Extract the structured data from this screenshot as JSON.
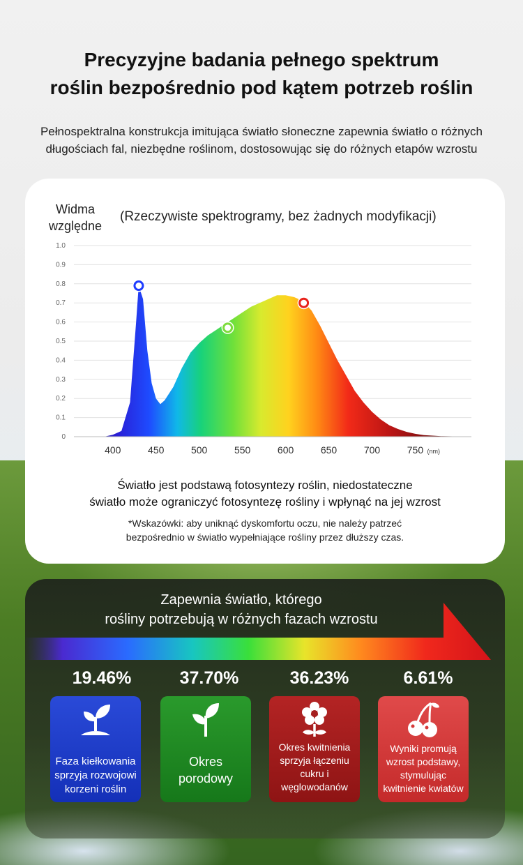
{
  "header": {
    "title_line1": "Precyzyjne badania pełnego spektrum",
    "title_line2": "roślin bezpośrednio pod kątem potrzeb roślin",
    "subtitle_line1": "Pełnospektralna konstrukcja imitująca światło słoneczne zapewnia światło o różnych",
    "subtitle_line2": "długościach fal, niezbędne roślinom, dostosowując się do różnych etapów wzrostu"
  },
  "spectrum_card": {
    "ylabel_line1": "Widma",
    "ylabel_line2": "względne",
    "note": "(Rzeczywiste spektrogramy, bez żadnych modyfikacji)",
    "body_line1": "Światło jest podstawą fotosyntezy roślin, niedostateczne",
    "body_line2": "światło może ograniczyć fotosyntezę rośliny i wpłynąć na jej wzrost",
    "tip_line1": "*Wskazówki: aby uniknąć dyskomfortu oczu, nie należy patrzeć",
    "tip_line2": "bezpośrednio w światło wypełniające rośliny przez dłuższy czas."
  },
  "chart_data": {
    "type": "area",
    "title": "",
    "xlabel": "",
    "ylabel": "Widma względne",
    "x_unit": "(nm)",
    "xlim": [
      355,
      815
    ],
    "ylim": [
      0,
      1.0
    ],
    "x_ticks": [
      "400",
      "450",
      "500",
      "550",
      "600",
      "650",
      "700",
      "750"
    ],
    "y_ticks": [
      "1.0",
      "0.9",
      "0.8",
      "0.7",
      "0.6",
      "0.5",
      "0.4",
      "0.3",
      "0.2",
      "0.1",
      "0"
    ],
    "grid": true,
    "x": [
      355,
      390,
      400,
      410,
      420,
      427,
      430,
      435,
      440,
      445,
      450,
      455,
      460,
      470,
      480,
      490,
      500,
      510,
      520,
      530,
      540,
      550,
      560,
      570,
      580,
      590,
      600,
      610,
      620,
      630,
      640,
      650,
      660,
      670,
      680,
      690,
      700,
      710,
      720,
      730,
      740,
      750,
      760,
      780,
      815
    ],
    "y": [
      0.0,
      0.0,
      0.01,
      0.03,
      0.18,
      0.6,
      0.79,
      0.72,
      0.45,
      0.28,
      0.2,
      0.17,
      0.19,
      0.26,
      0.36,
      0.44,
      0.49,
      0.53,
      0.56,
      0.59,
      0.62,
      0.65,
      0.68,
      0.7,
      0.72,
      0.74,
      0.74,
      0.73,
      0.71,
      0.66,
      0.58,
      0.49,
      0.4,
      0.32,
      0.24,
      0.18,
      0.13,
      0.09,
      0.06,
      0.04,
      0.025,
      0.015,
      0.008,
      0.003,
      0.0
    ],
    "markers": [
      {
        "x": 430,
        "y": 0.79,
        "color": "#1e3cff"
      },
      {
        "x": 533,
        "y": 0.57,
        "color": "#7ddc3c"
      },
      {
        "x": 621,
        "y": 0.7,
        "color": "#e8231c"
      }
    ]
  },
  "growth_panel": {
    "title_line1": "Zapewnia światło, którego",
    "title_line2": "rośliny potrzebują w różnych fazach wzrostu",
    "stages": [
      {
        "percent": "19.46%",
        "icon": "sprout-icon",
        "color": "#1a3cc4",
        "lines": [
          "Faza kiełkowania",
          "sprzyja rozwojowi",
          "korzeni roślin"
        ]
      },
      {
        "percent": "37.70%",
        "icon": "seedling-icon",
        "color": "#1e8a22",
        "lines": [
          "Okres",
          "porodowy"
        ]
      },
      {
        "percent": "36.23%",
        "icon": "flower-icon",
        "color": "#a61e1e",
        "lines": [
          "Okres kwitnienia",
          "sprzyja łączeniu",
          "cukru i",
          "węglowodanów"
        ]
      },
      {
        "percent": "6.61%",
        "icon": "cherry-icon",
        "color": "#d63a3a",
        "lines": [
          "Wyniki promują",
          "wzrost podstawy,",
          "stymulując",
          "kwitnienie kwiatów"
        ]
      }
    ]
  }
}
